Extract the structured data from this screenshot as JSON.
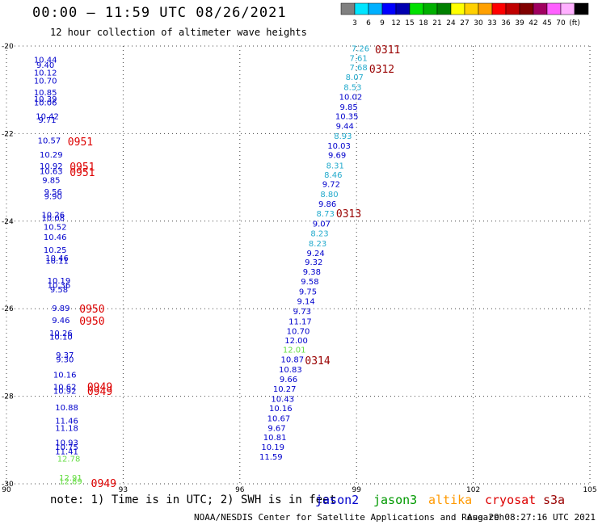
{
  "header": {
    "title": "00:00 — 11:59 UTC 08/26/2021",
    "subtitle": "12 hour collection of altimeter wave heights"
  },
  "colorbar": {
    "colors": [
      "#808080",
      "#00e5ff",
      "#00b0ff",
      "#0000ff",
      "#0000b0",
      "#00e000",
      "#00b000",
      "#008000",
      "#ffff00",
      "#ffd000",
      "#ffa000",
      "#ff0000",
      "#c00000",
      "#800000",
      "#a00060",
      "#ff60ff",
      "#ffb0ff",
      "#000000"
    ],
    "labels": [
      "3",
      "6",
      "9",
      "12",
      "15",
      "18",
      "21",
      "24",
      "27",
      "30",
      "33",
      "36",
      "39",
      "42",
      "45",
      "70",
      "(ft)"
    ]
  },
  "footer": {
    "note": "note: 1) Time is in UTC; 2) SWH is in feet",
    "credit": "NOAA/NESDIS Center for Satellite Applications and Research",
    "date": "Aug 29 08:27:16 UTC 2021",
    "satellites": [
      {
        "name": "jason2",
        "color": "#0000cc"
      },
      {
        "name": "jason3",
        "color": "#009900"
      },
      {
        "name": "altika",
        "color": "#ff9900"
      },
      {
        "name": "cryosat",
        "color": "#dd0000"
      },
      {
        "name": "s3a",
        "color": "#990000"
      }
    ]
  },
  "chart_data": {
    "type": "scatter",
    "xlim": [
      90,
      105
    ],
    "ylim": [
      -30,
      -20
    ],
    "x_ticks": [
      90,
      93,
      96,
      99,
      102,
      105
    ],
    "y_ticks": [
      -20,
      -22,
      -24,
      -26,
      -28,
      -30
    ],
    "grid": true,
    "points": [
      {
        "lon": 91.0,
        "lat": -20.3,
        "v": "10.44",
        "c": "#0000cc"
      },
      {
        "lon": 91.0,
        "lat": -20.42,
        "v": "9.40",
        "c": "#0000cc"
      },
      {
        "lon": 91.0,
        "lat": -20.6,
        "v": "10.12",
        "c": "#0000cc"
      },
      {
        "lon": 91.0,
        "lat": -20.78,
        "v": "10.70",
        "c": "#0000cc"
      },
      {
        "lon": 91.0,
        "lat": -21.05,
        "v": "10.85",
        "c": "#0000cc"
      },
      {
        "lon": 91.0,
        "lat": -21.2,
        "v": "10.39",
        "c": "#0000cc"
      },
      {
        "lon": 91.0,
        "lat": -21.28,
        "v": "10.06",
        "c": "#0000cc"
      },
      {
        "lon": 91.05,
        "lat": -21.6,
        "v": "10.42",
        "c": "#0000cc"
      },
      {
        "lon": 91.05,
        "lat": -21.68,
        "v": "9.71",
        "c": "#0000cc"
      },
      {
        "lon": 91.1,
        "lat": -22.15,
        "v": "10.57",
        "c": "#0000cc"
      },
      {
        "lon": 91.15,
        "lat": -22.47,
        "v": "10.29",
        "c": "#0000cc"
      },
      {
        "lon": 91.15,
        "lat": -22.73,
        "v": "10.92",
        "c": "#0000cc"
      },
      {
        "lon": 91.15,
        "lat": -22.85,
        "v": "10.63",
        "c": "#0000cc"
      },
      {
        "lon": 91.15,
        "lat": -23.05,
        "v": "9.85",
        "c": "#0000cc"
      },
      {
        "lon": 91.2,
        "lat": -23.32,
        "v": "9.56",
        "c": "#0000cc"
      },
      {
        "lon": 91.2,
        "lat": -23.42,
        "v": "9.90",
        "c": "#0000cc"
      },
      {
        "lon": 91.2,
        "lat": -23.85,
        "v": "10.26",
        "c": "#0000cc"
      },
      {
        "lon": 91.2,
        "lat": -23.92,
        "v": "10.08",
        "c": "#0000cc"
      },
      {
        "lon": 91.25,
        "lat": -24.12,
        "v": "10.52",
        "c": "#0000cc"
      },
      {
        "lon": 91.25,
        "lat": -24.35,
        "v": "10.46",
        "c": "#0000cc"
      },
      {
        "lon": 91.25,
        "lat": -24.65,
        "v": "10.25",
        "c": "#0000cc"
      },
      {
        "lon": 91.3,
        "lat": -24.83,
        "v": "10.46",
        "c": "#0000cc"
      },
      {
        "lon": 91.3,
        "lat": -24.9,
        "v": "10.11",
        "c": "#0000cc"
      },
      {
        "lon": 91.35,
        "lat": -25.35,
        "v": "10.19",
        "c": "#0000cc"
      },
      {
        "lon": 91.35,
        "lat": -25.45,
        "v": "10.36",
        "c": "#0000cc"
      },
      {
        "lon": 91.35,
        "lat": -25.55,
        "v": "9.58",
        "c": "#0000cc"
      },
      {
        "lon": 91.4,
        "lat": -25.98,
        "v": "9.89",
        "c": "#0000cc"
      },
      {
        "lon": 91.4,
        "lat": -26.25,
        "v": "9.46",
        "c": "#0000cc"
      },
      {
        "lon": 91.4,
        "lat": -26.55,
        "v": "10.26",
        "c": "#0000cc"
      },
      {
        "lon": 91.4,
        "lat": -26.63,
        "v": "10.10",
        "c": "#0000cc"
      },
      {
        "lon": 91.5,
        "lat": -27.05,
        "v": "9.37",
        "c": "#0000cc"
      },
      {
        "lon": 91.5,
        "lat": -27.15,
        "v": "9.30",
        "c": "#0000cc"
      },
      {
        "lon": 91.5,
        "lat": -27.5,
        "v": "10.16",
        "c": "#0000cc"
      },
      {
        "lon": 91.5,
        "lat": -27.78,
        "v": "10.62",
        "c": "#0000cc"
      },
      {
        "lon": 91.5,
        "lat": -27.87,
        "v": "10.92",
        "c": "#0000cc"
      },
      {
        "lon": 91.55,
        "lat": -28.25,
        "v": "10.88",
        "c": "#0000cc"
      },
      {
        "lon": 91.55,
        "lat": -28.55,
        "v": "11.46",
        "c": "#0000cc"
      },
      {
        "lon": 91.55,
        "lat": -28.72,
        "v": "11.18",
        "c": "#0000cc"
      },
      {
        "lon": 91.55,
        "lat": -29.05,
        "v": "10.93",
        "c": "#0000cc"
      },
      {
        "lon": 91.55,
        "lat": -29.15,
        "v": "10.75",
        "c": "#0000cc"
      },
      {
        "lon": 91.55,
        "lat": -29.25,
        "v": "11.41",
        "c": "#0000cc"
      },
      {
        "lon": 91.6,
        "lat": -29.42,
        "v": "12.78",
        "c": "#66dd44"
      },
      {
        "lon": 91.65,
        "lat": -29.85,
        "v": "12.91",
        "c": "#66dd44"
      },
      {
        "lon": 91.65,
        "lat": -29.94,
        "v": "12.89",
        "c": "#66dd44"
      },
      {
        "lon": 99.1,
        "lat": -20.05,
        "v": "7.26",
        "c": "#22aacc"
      },
      {
        "lon": 99.05,
        "lat": -20.27,
        "v": "7.61",
        "c": "#22aacc"
      },
      {
        "lon": 99.05,
        "lat": -20.48,
        "v": "7.68",
        "c": "#22aacc"
      },
      {
        "lon": 98.95,
        "lat": -20.7,
        "v": "8.07",
        "c": "#22aacc"
      },
      {
        "lon": 98.9,
        "lat": -20.93,
        "v": "8.53",
        "c": "#22aacc"
      },
      {
        "lon": 98.85,
        "lat": -21.15,
        "v": "10.02",
        "c": "#0000cc"
      },
      {
        "lon": 98.8,
        "lat": -21.38,
        "v": "9.85",
        "c": "#0000cc"
      },
      {
        "lon": 98.75,
        "lat": -21.6,
        "v": "10.35",
        "c": "#0000cc"
      },
      {
        "lon": 98.7,
        "lat": -21.82,
        "v": "9.44",
        "c": "#0000cc"
      },
      {
        "lon": 98.65,
        "lat": -22.05,
        "v": "8.93",
        "c": "#22aacc"
      },
      {
        "lon": 98.55,
        "lat": -22.27,
        "v": "10.03",
        "c": "#0000cc"
      },
      {
        "lon": 98.5,
        "lat": -22.48,
        "v": "9.69",
        "c": "#0000cc"
      },
      {
        "lon": 98.45,
        "lat": -22.72,
        "v": "8.31",
        "c": "#22aacc"
      },
      {
        "lon": 98.4,
        "lat": -22.93,
        "v": "8.46",
        "c": "#22aacc"
      },
      {
        "lon": 98.35,
        "lat": -23.15,
        "v": "9.72",
        "c": "#0000cc"
      },
      {
        "lon": 98.3,
        "lat": -23.38,
        "v": "8.80",
        "c": "#22aacc"
      },
      {
        "lon": 98.25,
        "lat": -23.6,
        "v": "9.86",
        "c": "#0000cc"
      },
      {
        "lon": 98.2,
        "lat": -23.82,
        "v": "8.73",
        "c": "#22aacc"
      },
      {
        "lon": 98.1,
        "lat": -24.05,
        "v": "9.07",
        "c": "#0000cc"
      },
      {
        "lon": 98.05,
        "lat": -24.27,
        "v": "8.23",
        "c": "#22aacc"
      },
      {
        "lon": 98.0,
        "lat": -24.5,
        "v": "8.23",
        "c": "#22aacc"
      },
      {
        "lon": 97.95,
        "lat": -24.72,
        "v": "9.24",
        "c": "#0000cc"
      },
      {
        "lon": 97.9,
        "lat": -24.93,
        "v": "9.32",
        "c": "#0000cc"
      },
      {
        "lon": 97.85,
        "lat": -25.15,
        "v": "9.38",
        "c": "#0000cc"
      },
      {
        "lon": 97.8,
        "lat": -25.37,
        "v": "9.58",
        "c": "#0000cc"
      },
      {
        "lon": 97.75,
        "lat": -25.6,
        "v": "9.75",
        "c": "#0000cc"
      },
      {
        "lon": 97.7,
        "lat": -25.82,
        "v": "9.14",
        "c": "#0000cc"
      },
      {
        "lon": 97.6,
        "lat": -26.05,
        "v": "9.73",
        "c": "#0000cc"
      },
      {
        "lon": 97.55,
        "lat": -26.28,
        "v": "11.17",
        "c": "#0000cc"
      },
      {
        "lon": 97.5,
        "lat": -26.5,
        "v": "10.70",
        "c": "#0000cc"
      },
      {
        "lon": 97.45,
        "lat": -26.72,
        "v": "12.00",
        "c": "#0000cc"
      },
      {
        "lon": 97.4,
        "lat": -26.93,
        "v": "12.01",
        "c": "#66dd44"
      },
      {
        "lon": 97.35,
        "lat": -27.15,
        "v": "10.87",
        "c": "#0000cc"
      },
      {
        "lon": 97.3,
        "lat": -27.38,
        "v": "10.83",
        "c": "#0000cc"
      },
      {
        "lon": 97.25,
        "lat": -27.6,
        "v": "9.66",
        "c": "#0000cc"
      },
      {
        "lon": 97.15,
        "lat": -27.82,
        "v": "10.27",
        "c": "#0000cc"
      },
      {
        "lon": 97.1,
        "lat": -28.05,
        "v": "10.43",
        "c": "#0000cc"
      },
      {
        "lon": 97.05,
        "lat": -28.27,
        "v": "10.16",
        "c": "#0000cc"
      },
      {
        "lon": 97.0,
        "lat": -28.5,
        "v": "10.67",
        "c": "#0000cc"
      },
      {
        "lon": 96.95,
        "lat": -28.72,
        "v": "9.67",
        "c": "#0000cc"
      },
      {
        "lon": 96.9,
        "lat": -28.93,
        "v": "10.81",
        "c": "#0000cc"
      },
      {
        "lon": 96.85,
        "lat": -29.15,
        "v": "10.19",
        "c": "#0000cc"
      },
      {
        "lon": 96.8,
        "lat": -29.37,
        "v": "11.59",
        "c": "#0000cc"
      }
    ],
    "time_labels": [
      {
        "lon": 91.9,
        "lat": -22.18,
        "t": "0951",
        "c": "#dd0000"
      },
      {
        "lon": 91.95,
        "lat": -22.75,
        "t": "0951",
        "c": "#dd0000"
      },
      {
        "lon": 91.95,
        "lat": -22.88,
        "t": "0951",
        "c": "#dd0000"
      },
      {
        "lon": 92.2,
        "lat": -26.0,
        "t": "0950",
        "c": "#dd0000"
      },
      {
        "lon": 92.2,
        "lat": -26.27,
        "t": "0950",
        "c": "#dd0000"
      },
      {
        "lon": 92.4,
        "lat": -27.78,
        "t": "0949",
        "c": "#dd0000"
      },
      {
        "lon": 92.4,
        "lat": -27.88,
        "t": "0949",
        "c": "#dd0000"
      },
      {
        "lon": 92.5,
        "lat": -29.98,
        "t": "0949",
        "c": "#dd0000"
      },
      {
        "lon": 99.8,
        "lat": -20.07,
        "t": "0311",
        "c": "#990000"
      },
      {
        "lon": 99.65,
        "lat": -20.52,
        "t": "0312",
        "c": "#990000"
      },
      {
        "lon": 98.8,
        "lat": -23.82,
        "t": "0313",
        "c": "#990000"
      },
      {
        "lon": 98.0,
        "lat": -27.18,
        "t": "0314",
        "c": "#990000"
      }
    ]
  }
}
